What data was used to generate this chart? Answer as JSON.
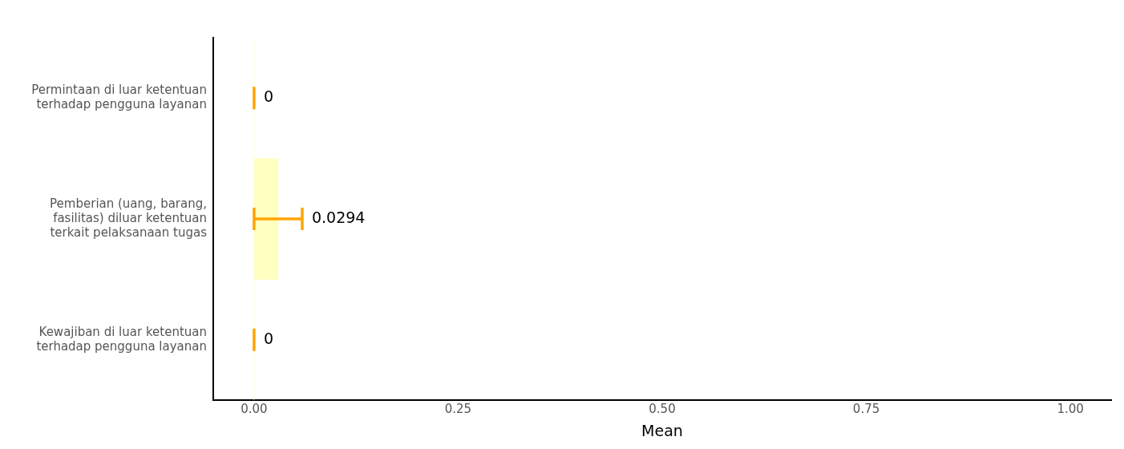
{
  "chart_data": {
    "type": "bar",
    "orientation": "horizontal",
    "xlabel": "Mean",
    "categories": [
      "Permintaan di luar ketentuan terhadap pengguna layanan",
      "Pemberian (uang, barang, fasilitas) diluar ketentuan terkait pelaksanaan tugas",
      "Kewajiban di luar ketentuan terhadap pengguna layanan"
    ],
    "values": [
      0,
      0.0294,
      0
    ],
    "errors": [
      [
        0,
        0
      ],
      [
        0,
        0.059
      ],
      [
        0,
        0
      ]
    ],
    "color": "#ffffbf",
    "value_labels": [
      "0",
      "0.0294",
      "0"
    ],
    "xlim": [
      -0.05,
      1.05
    ],
    "xticks": [
      {
        "value": 0,
        "label": "0.00"
      },
      {
        "value": 0.25,
        "label": "0.25"
      },
      {
        "value": 0.5,
        "label": "0.50"
      },
      {
        "value": 0.75,
        "label": "0.75"
      },
      {
        "value": 1,
        "label": "1.00"
      }
    ],
    "grid": false,
    "legend": false
  }
}
